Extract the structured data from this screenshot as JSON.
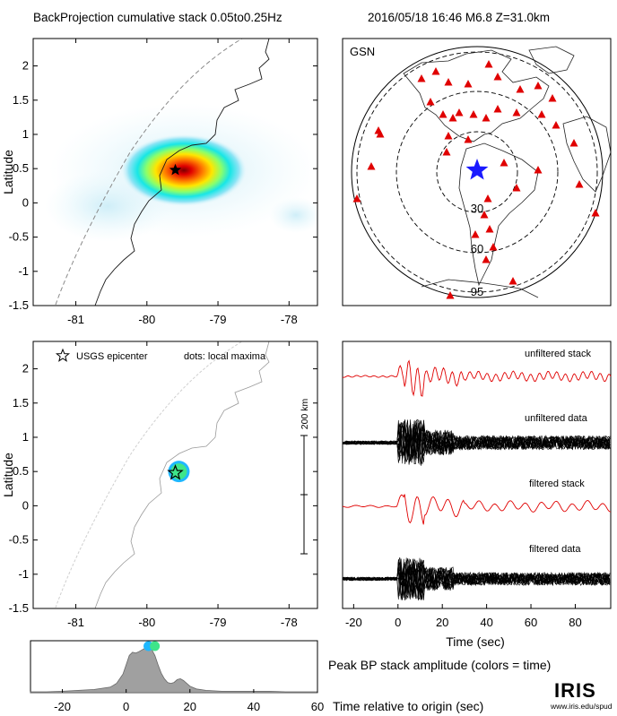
{
  "header": {
    "left_title": "BackProjection cumulative stack 0.05to0.25Hz",
    "right_title": "2016/05/18 16:46   M6.8  Z=31.0km"
  },
  "chart_data": [
    {
      "type": "heatmap",
      "id": "cumulative-stack-map",
      "ylabel": "Latitude",
      "xlim": [
        -81.6,
        -77.6
      ],
      "ylim": [
        -1.5,
        2.4
      ],
      "xticks": [
        "-81",
        "-80",
        "-79",
        "-78"
      ],
      "yticks": [
        "2",
        "1.5",
        "1",
        "0.5",
        "0",
        "-0.5",
        "-1",
        "-1.5"
      ],
      "peak": {
        "lon": -79.6,
        "lat": 0.47
      },
      "epicenter": {
        "lon": -79.6,
        "lat": 0.48
      }
    },
    {
      "type": "scatter",
      "id": "station-map",
      "network_label": "GSN",
      "distance_rings_deg": [
        "30",
        "60",
        "95"
      ]
    },
    {
      "type": "scatter",
      "id": "local-maxima-map",
      "ylabel": "Latitude",
      "xlim": [
        -81.6,
        -77.6
      ],
      "ylim": [
        -1.5,
        2.4
      ],
      "xticks": [
        "-81",
        "-80",
        "-79",
        "-78"
      ],
      "yticks": [
        "2",
        "1.5",
        "1",
        "0.5",
        "0",
        "-0.5",
        "-1",
        "-1.5"
      ],
      "legend_epicenter": "USGS epicenter",
      "legend_dots": "dots: local maxima",
      "scale_label": "200 km",
      "maxima": [
        {
          "lon": -79.55,
          "lat": 0.5
        }
      ]
    },
    {
      "type": "line",
      "id": "traces",
      "xlabel": "Time (sec)",
      "xlim": [
        -25,
        96
      ],
      "xticks": [
        "-20",
        "0",
        "20",
        "40",
        "60",
        "80"
      ],
      "xtick_values": [
        -20,
        0,
        20,
        40,
        60,
        80
      ],
      "traces": [
        {
          "label": "unfiltered stack",
          "color": "#e00000"
        },
        {
          "label": "unfiltered data",
          "color": "#000000"
        },
        {
          "label": "filtered stack",
          "color": "#e00000"
        },
        {
          "label": "filtered data",
          "color": "#000000"
        }
      ]
    },
    {
      "type": "area",
      "id": "peak-amplitude",
      "title": "Peak BP stack amplitude (colors = time)",
      "xlabel": "Time relative to origin (sec)",
      "xlim": [
        -30,
        60
      ],
      "xticks": [
        "-20",
        "0",
        "20",
        "40",
        "60"
      ],
      "xtick_values": [
        -20,
        0,
        20,
        40,
        60
      ],
      "x": [
        -30,
        -25,
        -20,
        -15,
        -10,
        -5,
        -3,
        -1,
        0,
        1,
        2,
        3,
        4,
        5,
        6,
        7,
        8,
        9,
        10,
        11,
        12,
        13,
        14,
        15,
        16,
        17,
        18,
        19,
        20,
        22,
        25,
        30,
        35,
        40,
        45,
        50,
        55,
        60
      ],
      "y": [
        0.02,
        0.02,
        0.03,
        0.05,
        0.07,
        0.12,
        0.2,
        0.4,
        0.6,
        0.8,
        0.87,
        0.85,
        0.88,
        0.92,
        0.96,
        0.98,
        0.93,
        0.8,
        0.6,
        0.42,
        0.3,
        0.22,
        0.2,
        0.22,
        0.28,
        0.3,
        0.26,
        0.2,
        0.14,
        0.08,
        0.05,
        0.03,
        0.03,
        0.03,
        0.03,
        0.02,
        0.02,
        0.02
      ],
      "dots": [
        {
          "t": 7,
          "color": "#1fb8ff"
        },
        {
          "t": 9,
          "color": "#3ee58a"
        }
      ]
    }
  ],
  "branding": {
    "logo": "IRIS",
    "url": "www.iris.edu/spud"
  }
}
